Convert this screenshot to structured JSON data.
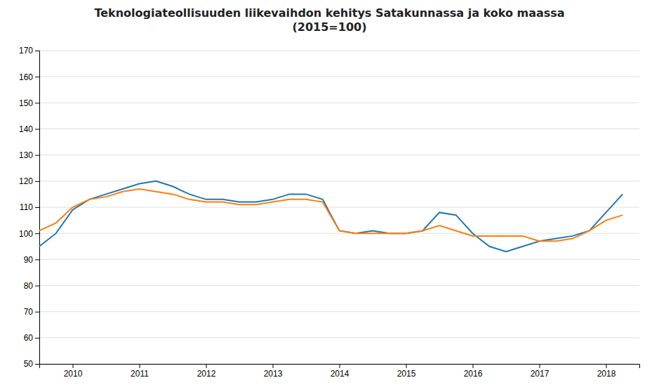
{
  "chart_data": {
    "type": "line",
    "title": "Teknologiateollisuuden liikevaihdon kehitys Satakunnassa ja koko maassa\n(2015=100)",
    "x": [
      2009.5,
      2009.75,
      2010.0,
      2010.25,
      2010.5,
      2010.75,
      2011.0,
      2011.25,
      2011.5,
      2011.75,
      2012.0,
      2012.25,
      2012.5,
      2012.75,
      2013.0,
      2013.25,
      2013.5,
      2013.75,
      2014.0,
      2014.25,
      2014.5,
      2014.75,
      2015.0,
      2015.25,
      2015.5,
      2015.75,
      2016.0,
      2016.25,
      2016.5,
      2016.75,
      2017.0,
      2017.25,
      2017.5,
      2017.75,
      2018.0,
      2018.25
    ],
    "series": [
      {
        "values": [
          95,
          100,
          109,
          113,
          115,
          117,
          119,
          120,
          118,
          115,
          113,
          113,
          112,
          112,
          113,
          115,
          115,
          113,
          101,
          100,
          101,
          100,
          100,
          101,
          108,
          107,
          100,
          95,
          93,
          95,
          97,
          98,
          99,
          101,
          108,
          115
        ]
      },
      {
        "values": [
          101,
          104,
          110,
          113,
          114,
          116,
          117,
          116,
          115,
          113,
          112,
          112,
          111,
          111,
          112,
          113,
          113,
          112,
          101,
          100,
          100,
          100,
          100,
          101,
          103,
          101,
          99,
          99,
          99,
          99,
          97,
          97,
          98,
          101,
          105,
          107
        ]
      }
    ],
    "xlim": [
      2009.5,
      2018.5
    ],
    "xticks": [
      2010,
      2011,
      2012,
      2013,
      2014,
      2015,
      2016,
      2017,
      2018
    ],
    "ylim": [
      50,
      170
    ],
    "yticks": [
      50,
      60,
      70,
      80,
      90,
      100,
      110,
      120,
      130,
      140,
      150,
      160,
      170
    ],
    "grid": true
  }
}
